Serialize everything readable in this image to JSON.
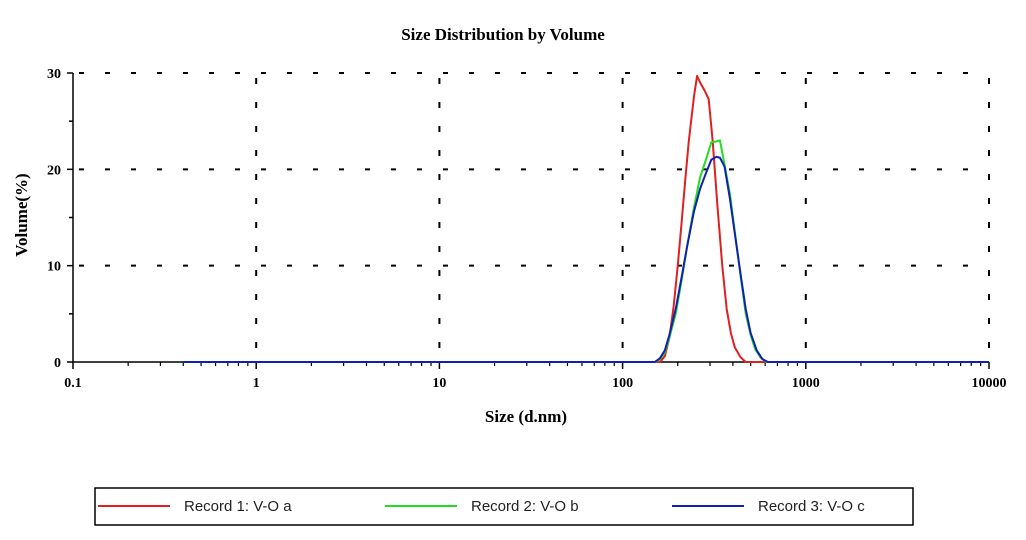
{
  "chart_data": {
    "type": "line",
    "title": "Size Distribution by Volume",
    "xlabel": "Size (d.nm)",
    "ylabel": "Volume(%)",
    "x_scale": "log",
    "xlim": [
      0.1,
      10000
    ],
    "ylim": [
      0,
      30
    ],
    "x_ticks": [
      "0.1",
      "1",
      "10",
      "100",
      "1000",
      "10000"
    ],
    "y_ticks": [
      "0",
      "10",
      "20",
      "30"
    ],
    "grid": true,
    "legend_position": "bottom",
    "series": [
      {
        "name": "Record 1: V-O a",
        "color": "#dd2020",
        "points": [
          [
            0.4,
            0
          ],
          [
            100,
            0
          ],
          [
            160,
            0
          ],
          [
            170,
            0.6
          ],
          [
            180,
            2.5
          ],
          [
            190,
            5.8
          ],
          [
            200,
            10.0
          ],
          [
            210,
            14.5
          ],
          [
            220,
            19.0
          ],
          [
            230,
            23.0
          ],
          [
            245,
            27.5
          ],
          [
            255,
            29.7
          ],
          [
            265,
            29.0
          ],
          [
            280,
            28.2
          ],
          [
            295,
            27.3
          ],
          [
            310,
            23.0
          ],
          [
            330,
            16.0
          ],
          [
            350,
            10.0
          ],
          [
            370,
            5.5
          ],
          [
            390,
            3.0
          ],
          [
            410,
            1.5
          ],
          [
            440,
            0.5
          ],
          [
            470,
            0
          ],
          [
            10000,
            0
          ]
        ]
      },
      {
        "name": "Record 2: V-O b",
        "color": "#22dd22",
        "points": [
          [
            0.4,
            0
          ],
          [
            100,
            0
          ],
          [
            150,
            0
          ],
          [
            160,
            0.3
          ],
          [
            170,
            1.0
          ],
          [
            180,
            2.5
          ],
          [
            195,
            5.0
          ],
          [
            210,
            8.5
          ],
          [
            225,
            12.0
          ],
          [
            245,
            16.0
          ],
          [
            265,
            19.2
          ],
          [
            285,
            21.0
          ],
          [
            305,
            22.8
          ],
          [
            325,
            22.9
          ],
          [
            340,
            23.0
          ],
          [
            360,
            20.5
          ],
          [
            385,
            17.5
          ],
          [
            410,
            13.5
          ],
          [
            440,
            9.0
          ],
          [
            470,
            5.0
          ],
          [
            500,
            2.8
          ],
          [
            530,
            1.3
          ],
          [
            570,
            0.4
          ],
          [
            610,
            0
          ],
          [
            10000,
            0
          ]
        ]
      },
      {
        "name": "Record 3: V-O c",
        "color": "#1020b0",
        "points": [
          [
            0.4,
            0
          ],
          [
            100,
            0
          ],
          [
            150,
            0
          ],
          [
            160,
            0.4
          ],
          [
            170,
            1.2
          ],
          [
            180,
            2.8
          ],
          [
            195,
            5.5
          ],
          [
            210,
            8.8
          ],
          [
            225,
            12.0
          ],
          [
            245,
            15.6
          ],
          [
            265,
            18.0
          ],
          [
            285,
            19.6
          ],
          [
            305,
            21.0
          ],
          [
            325,
            21.3
          ],
          [
            340,
            21.2
          ],
          [
            360,
            20.3
          ],
          [
            385,
            17.0
          ],
          [
            410,
            13.3
          ],
          [
            440,
            9.2
          ],
          [
            470,
            5.5
          ],
          [
            500,
            3.0
          ],
          [
            540,
            1.2
          ],
          [
            580,
            0.3
          ],
          [
            620,
            0
          ],
          [
            10000,
            0
          ]
        ]
      }
    ]
  }
}
